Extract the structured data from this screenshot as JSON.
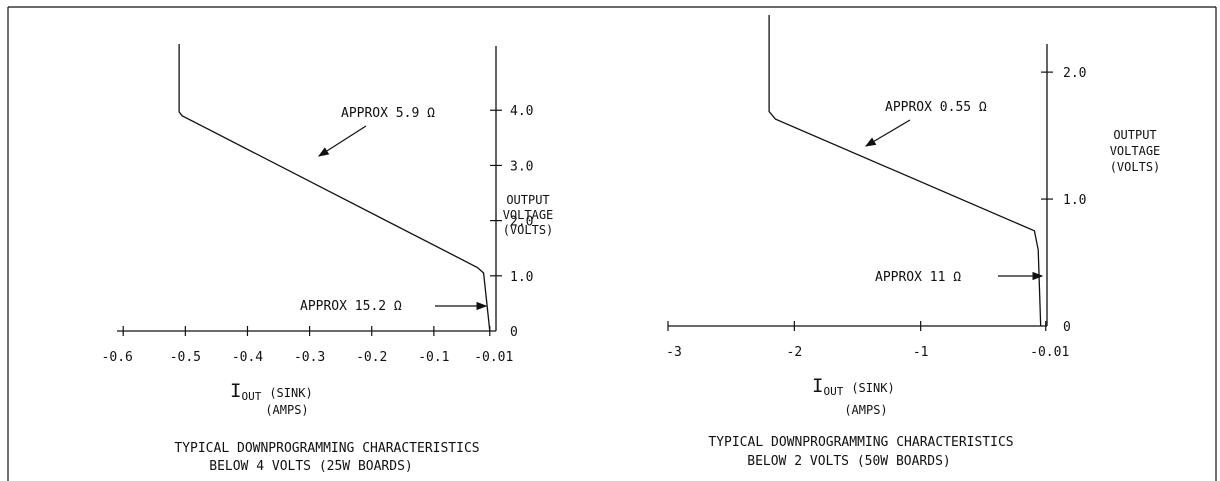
{
  "chart_data": [
    {
      "type": "line",
      "x_ticks": [
        "-0.6",
        "-0.5",
        "-0.4",
        "-0.3",
        "-0.2",
        "-0.1",
        "-0.01"
      ],
      "x_tick_values": [
        -0.6,
        -0.5,
        -0.4,
        -0.3,
        -0.2,
        -0.1,
        -0.01
      ],
      "y_ticks": [
        "0",
        "1.0",
        "2.0",
        "3.0",
        "4.0"
      ],
      "y_tick_values": [
        0,
        1,
        2,
        3,
        4
      ],
      "xlim": [
        -0.61,
        0.0
      ],
      "ylim": [
        0,
        5.2
      ],
      "xlabel_main": "I",
      "xlabel_sub": "OUT",
      "xlabel_rest": "(SINK)",
      "xlabel_units": "(AMPS)",
      "ylabel": [
        "OUTPUT",
        "VOLTAGE",
        "(VOLTS)"
      ],
      "annotations": [
        {
          "text": "APPROX 5.9 Ω",
          "x": -0.35,
          "y": 4.2
        },
        {
          "text": "APPROX 15.2 Ω",
          "x": -0.03,
          "y": 0.5
        }
      ],
      "series": [
        {
          "x": [
            -0.51,
            -0.51,
            -0.505,
            -0.03,
            -0.02,
            -0.01
          ],
          "y": [
            5.2,
            3.97,
            3.9,
            1.15,
            1.05,
            0.0
          ]
        }
      ],
      "caption": [
        "TYPICAL DOWNPROGRAMMING CHARACTERISTICS",
        "BELOW 4 VOLTS (25W BOARDS)"
      ]
    },
    {
      "type": "line",
      "x_ticks": [
        "-3",
        "-2",
        "-1",
        "-0.01"
      ],
      "x_tick_values": [
        -3,
        -2,
        -1,
        -0.01
      ],
      "y_ticks": [
        "0",
        "1.0",
        "2.0"
      ],
      "y_tick_values": [
        0,
        1,
        2
      ],
      "xlim": [
        -3.0,
        0.0
      ],
      "ylim": [
        0,
        2.45
      ],
      "xlabel_main": "I",
      "xlabel_sub": "OUT",
      "xlabel_rest": "(SINK)",
      "xlabel_units": "(AMPS)",
      "ylabel": [
        "OUTPUT",
        "VOLTAGE",
        "(VOLTS)"
      ],
      "annotations": [
        {
          "text": "APPROX 0.55 Ω",
          "x": -1.5,
          "y": 1.6
        },
        {
          "text": "APPROX 11 Ω",
          "x": -0.05,
          "y": 0.28
        }
      ],
      "series": [
        {
          "x": [
            -2.2,
            -2.2,
            -2.15,
            -0.1,
            -0.07,
            -0.05
          ],
          "y": [
            2.45,
            1.69,
            1.63,
            0.75,
            0.6,
            0.0
          ]
        }
      ],
      "caption": [
        "TYPICAL DOWNPROGRAMMING CHARACTERISTICS",
        "BELOW 2 VOLTS (50W BOARDS)"
      ]
    }
  ]
}
